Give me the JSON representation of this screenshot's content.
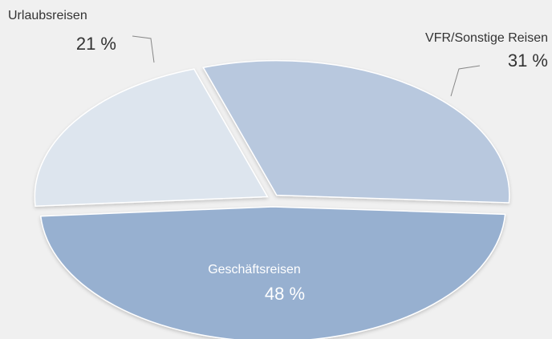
{
  "chart_data": {
    "type": "pie",
    "categories": [
      "Urlaubsreisen",
      "VFR/Sonstige Reisen",
      "Geschäftsreisen"
    ],
    "values": [
      21,
      31,
      48
    ],
    "value_labels": [
      "21 %",
      "31 %",
      "48 %"
    ],
    "colors": [
      "#dde5ee",
      "#b8c8de",
      "#97b0d0"
    ]
  }
}
